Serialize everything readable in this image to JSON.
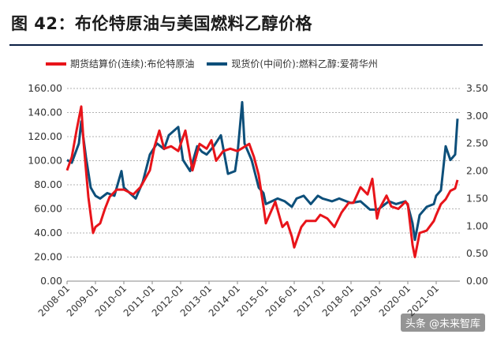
{
  "title": "图 42：布伦特原油与美国燃料乙醇价格",
  "watermark": "头条 @未来智库",
  "colors": {
    "brent": "#e8141a",
    "ethanol": "#0d4f7a",
    "title_rule": "#0a1f44"
  },
  "chart_data": {
    "type": "line",
    "legend_position": "top",
    "grid": true,
    "x_tick_labels": [
      "2008-01",
      "2009-01",
      "2010-01",
      "2011-01",
      "2012-01",
      "2013-01",
      "2014-01",
      "2015-01",
      "2016-01",
      "2017-01",
      "2018-01",
      "2019-01",
      "2020-01",
      "2021-01"
    ],
    "y_left": {
      "lim": [
        0,
        160
      ],
      "ticks": [
        "0.00",
        "20.00",
        "40.00",
        "60.00",
        "80.00",
        "100.00",
        "120.00",
        "140.00",
        "160.00"
      ]
    },
    "y_right": {
      "lim": [
        0,
        3.5
      ],
      "ticks": [
        "0.00",
        "0.50",
        "1.00",
        "1.50",
        "2.00",
        "2.50",
        "3.00",
        "3.50"
      ]
    },
    "series": [
      {
        "name": "期货结算价(连续):布伦特原油",
        "axis": "left",
        "points": [
          [
            "2008-01",
            92
          ],
          [
            "2008-03",
            103
          ],
          [
            "2008-05",
            125
          ],
          [
            "2008-07",
            145
          ],
          [
            "2008-08",
            115
          ],
          [
            "2008-10",
            70
          ],
          [
            "2008-12",
            40
          ],
          [
            "2009-01",
            45
          ],
          [
            "2009-03",
            48
          ],
          [
            "2009-05",
            60
          ],
          [
            "2009-07",
            70
          ],
          [
            "2009-10",
            76
          ],
          [
            "2010-01",
            76
          ],
          [
            "2010-05",
            72
          ],
          [
            "2010-08",
            78
          ],
          [
            "2010-12",
            92
          ],
          [
            "2011-02",
            112
          ],
          [
            "2011-04",
            125
          ],
          [
            "2011-06",
            110
          ],
          [
            "2011-09",
            112
          ],
          [
            "2011-12",
            108
          ],
          [
            "2012-03",
            125
          ],
          [
            "2012-06",
            92
          ],
          [
            "2012-09",
            114
          ],
          [
            "2012-12",
            110
          ],
          [
            "2013-02",
            117
          ],
          [
            "2013-04",
            100
          ],
          [
            "2013-07",
            108
          ],
          [
            "2013-10",
            110
          ],
          [
            "2014-01",
            108
          ],
          [
            "2014-06",
            114
          ],
          [
            "2014-08",
            103
          ],
          [
            "2014-10",
            88
          ],
          [
            "2014-12",
            62
          ],
          [
            "2015-01",
            48
          ],
          [
            "2015-05",
            66
          ],
          [
            "2015-08",
            45
          ],
          [
            "2015-10",
            49
          ],
          [
            "2015-12",
            37
          ],
          [
            "2016-01",
            28
          ],
          [
            "2016-04",
            45
          ],
          [
            "2016-06",
            50
          ],
          [
            "2016-10",
            50
          ],
          [
            "2016-12",
            55
          ],
          [
            "2017-03",
            52
          ],
          [
            "2017-06",
            45
          ],
          [
            "2017-09",
            57
          ],
          [
            "2017-12",
            65
          ],
          [
            "2018-02",
            65
          ],
          [
            "2018-05",
            78
          ],
          [
            "2018-08",
            72
          ],
          [
            "2018-10",
            85
          ],
          [
            "2018-12",
            52
          ],
          [
            "2019-01",
            60
          ],
          [
            "2019-04",
            71
          ],
          [
            "2019-06",
            62
          ],
          [
            "2019-09",
            60
          ],
          [
            "2019-12",
            66
          ],
          [
            "2020-01",
            64
          ],
          [
            "2020-03",
            30
          ],
          [
            "2020-04",
            20
          ],
          [
            "2020-06",
            40
          ],
          [
            "2020-09",
            42
          ],
          [
            "2020-12",
            50
          ],
          [
            "2021-01",
            55
          ],
          [
            "2021-03",
            64
          ],
          [
            "2021-05",
            68
          ],
          [
            "2021-07",
            75
          ],
          [
            "2021-09",
            77
          ],
          [
            "2021-10",
            84
          ]
        ]
      },
      {
        "name": "现货价(中间价):燃料乙醇:爱荷华州",
        "axis": "right",
        "points": [
          [
            "2008-01",
            2.2
          ],
          [
            "2008-03",
            2.15
          ],
          [
            "2008-06",
            2.5
          ],
          [
            "2008-07",
            2.9
          ],
          [
            "2008-09",
            2.25
          ],
          [
            "2008-11",
            1.7
          ],
          [
            "2009-01",
            1.55
          ],
          [
            "2009-03",
            1.5
          ],
          [
            "2009-06",
            1.6
          ],
          [
            "2009-09",
            1.55
          ],
          [
            "2009-12",
            2.0
          ],
          [
            "2010-01",
            1.7
          ],
          [
            "2010-06",
            1.5
          ],
          [
            "2010-09",
            1.8
          ],
          [
            "2010-12",
            2.3
          ],
          [
            "2011-03",
            2.5
          ],
          [
            "2011-06",
            2.4
          ],
          [
            "2011-08",
            2.65
          ],
          [
            "2011-12",
            2.8
          ],
          [
            "2012-02",
            2.2
          ],
          [
            "2012-05",
            2.0
          ],
          [
            "2012-08",
            2.45
          ],
          [
            "2012-10",
            2.35
          ],
          [
            "2012-12",
            2.3
          ],
          [
            "2013-03",
            2.45
          ],
          [
            "2013-06",
            2.65
          ],
          [
            "2013-09",
            1.95
          ],
          [
            "2013-12",
            2.0
          ],
          [
            "2014-01",
            2.3
          ],
          [
            "2014-03",
            3.25
          ],
          [
            "2014-04",
            2.5
          ],
          [
            "2014-07",
            2.2
          ],
          [
            "2014-10",
            1.7
          ],
          [
            "2014-12",
            1.6
          ],
          [
            "2015-01",
            1.4
          ],
          [
            "2015-06",
            1.5
          ],
          [
            "2015-09",
            1.45
          ],
          [
            "2015-12",
            1.35
          ],
          [
            "2016-02",
            1.5
          ],
          [
            "2016-05",
            1.55
          ],
          [
            "2016-08",
            1.4
          ],
          [
            "2016-11",
            1.55
          ],
          [
            "2017-01",
            1.5
          ],
          [
            "2017-05",
            1.45
          ],
          [
            "2017-08",
            1.5
          ],
          [
            "2017-11",
            1.45
          ],
          [
            "2018-01",
            1.42
          ],
          [
            "2018-05",
            1.45
          ],
          [
            "2018-09",
            1.3
          ],
          [
            "2018-12",
            1.3
          ],
          [
            "2019-01",
            1.32
          ],
          [
            "2019-05",
            1.45
          ],
          [
            "2019-08",
            1.4
          ],
          [
            "2019-12",
            1.45
          ],
          [
            "2020-01",
            1.38
          ],
          [
            "2020-03",
            1.05
          ],
          [
            "2020-04",
            0.75
          ],
          [
            "2020-06",
            1.2
          ],
          [
            "2020-09",
            1.35
          ],
          [
            "2020-12",
            1.4
          ],
          [
            "2021-01",
            1.55
          ],
          [
            "2021-03",
            1.65
          ],
          [
            "2021-05",
            2.45
          ],
          [
            "2021-07",
            2.2
          ],
          [
            "2021-09",
            2.3
          ],
          [
            "2021-10",
            2.95
          ]
        ]
      }
    ]
  }
}
